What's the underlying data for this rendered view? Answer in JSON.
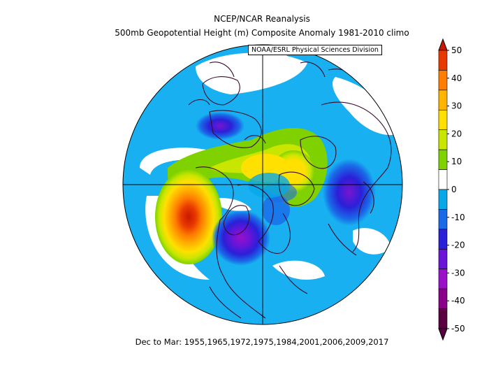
{
  "title_line1": "NCEP/NCAR Reanalysis",
  "title_line2": "500mb Geopotential Height (m) Composite Anomaly 1981-2010 climo",
  "credit": "NOAA/ESRL Physical Sciences Division",
  "footer": "Dec to Mar: 1955,1965,1972,1975,1984,2001,2006,2009,2017",
  "colorbar": {
    "levels": [
      "50",
      "40",
      "30",
      "20",
      "10",
      "0",
      "-10",
      "-20",
      "-30",
      "-40",
      "-50"
    ],
    "colors": [
      "#e83a00",
      "#ff7d00",
      "#ffb400",
      "#ffe000",
      "#c8e600",
      "#7fd200",
      "#ffffff",
      "#08a8e8",
      "#1a6ae8",
      "#2a20d8",
      "#6a14d8",
      "#9a10c8",
      "#8a0088",
      "#5a0040"
    ]
  },
  "anomalies": {
    "positive_center_color": "#c81800",
    "negative_center_color": "#8a18b8",
    "background_color": "#18b0f0"
  }
}
